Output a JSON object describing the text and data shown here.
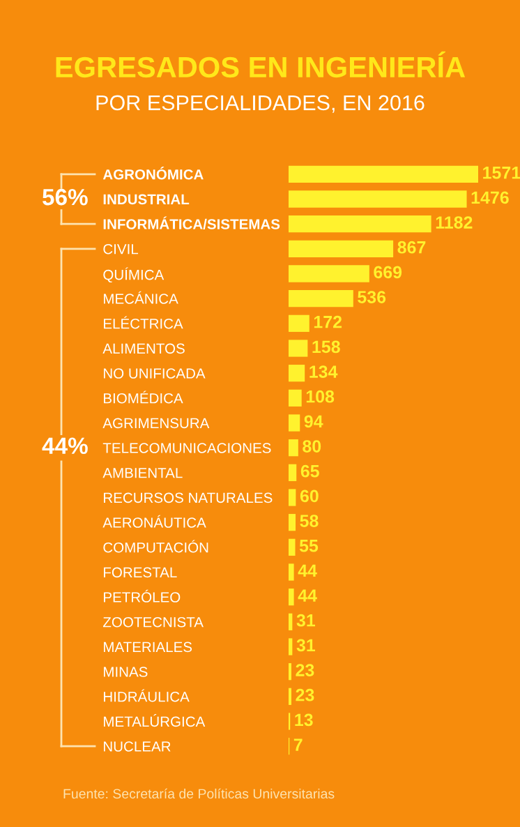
{
  "chart_data": {
    "type": "bar",
    "orientation": "horizontal",
    "title": "EGRESADOS EN INGENIERÍA",
    "subtitle": "POR ESPECIALIDADES, EN 2016",
    "categories": [
      "AGRONÓMICA",
      "INDUSTRIAL",
      "INFORMÁTICA/SISTEMAS",
      "CIVIL",
      "QUÍMICA",
      "MECÁNICA",
      "ELÉCTRICA",
      "ALIMENTOS",
      "NO UNIFICADA",
      "BIOMÉDICA",
      "AGRIMENSURA",
      "TELECOMUNICACIONES",
      "AMBIENTAL",
      "RECURSOS NATURALES",
      "AERONÁUTICA",
      "COMPUTACIÓN",
      "FORESTAL",
      "PETRÓLEO",
      "ZOOTECNISTA",
      "MATERIALES",
      "MINAS",
      "HIDRÁULICA",
      "METALÚRGICA",
      "NUCLEAR"
    ],
    "values": [
      1571,
      1476,
      1182,
      867,
      669,
      536,
      172,
      158,
      134,
      108,
      94,
      80,
      65,
      60,
      58,
      55,
      44,
      44,
      31,
      31,
      23,
      23,
      13,
      7
    ],
    "color": "#fff22e",
    "data_labels": true,
    "grid": false,
    "legend": false,
    "tick_labels": "y",
    "annotations": [
      "56%",
      "44%",
      "Fuente: Secretaría de Políticas Universitarias"
    ]
  }
}
